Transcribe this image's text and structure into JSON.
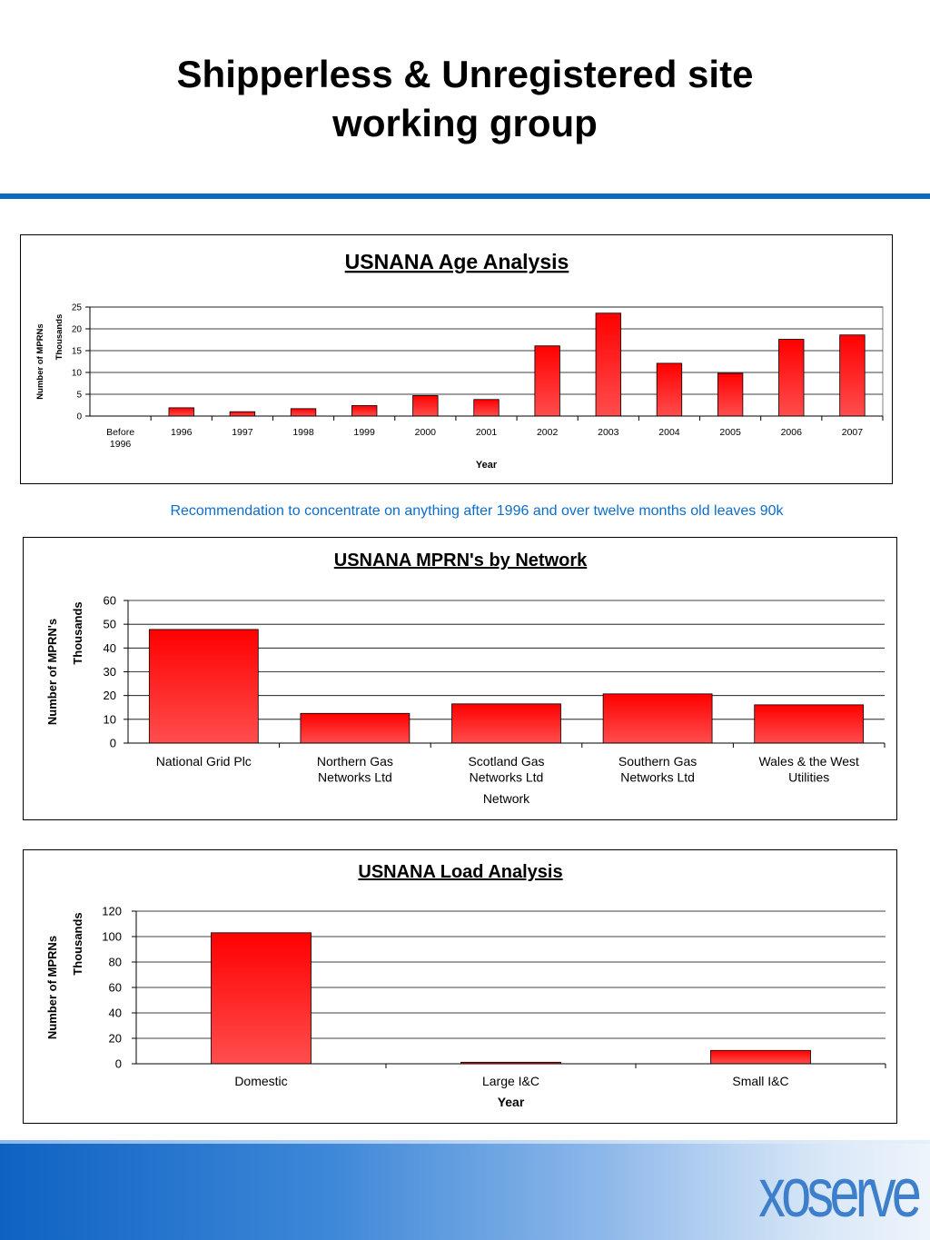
{
  "page": {
    "title_line1": "Shipperless & Unregistered site",
    "title_line2": "working group",
    "recommendation": "Recommendation to concentrate on anything after 1996  and over twelve months old leaves 90k",
    "logo_text": "xoserve"
  },
  "colors": {
    "bar": "#ff1c1c",
    "bar_dark": "#b30000",
    "accent_blue": "#0a6cbf",
    "note_blue": "#0b6dcc"
  },
  "chart_data": [
    {
      "type": "bar",
      "title": "USNANA Age Analysis",
      "categories": [
        [
          "Before",
          "1996"
        ],
        [
          "1996"
        ],
        [
          "1997"
        ],
        [
          "1998"
        ],
        [
          "1999"
        ],
        [
          "2000"
        ],
        [
          "2001"
        ],
        [
          "2002"
        ],
        [
          "2003"
        ],
        [
          "2004"
        ],
        [
          "2005"
        ],
        [
          "2006"
        ],
        [
          "2007"
        ]
      ],
      "values": [
        0,
        1.9,
        1.0,
        1.7,
        2.4,
        4.7,
        3.8,
        16.1,
        23.6,
        12.1,
        9.8,
        17.6,
        18.6
      ],
      "xlabel": "Year",
      "ylabel": "Number of MPRNs",
      "yunit": "Thousands",
      "ylim": [
        0,
        25
      ],
      "yticks": [
        0,
        5,
        10,
        15,
        20,
        25
      ],
      "grid": true
    },
    {
      "type": "bar",
      "title": "USNANA MPRN's by Network",
      "categories": [
        [
          "National Grid Plc"
        ],
        [
          "Northern Gas",
          "Networks Ltd"
        ],
        [
          "Scotland Gas",
          "Networks Ltd"
        ],
        [
          "Southern Gas",
          "Networks Ltd"
        ],
        [
          "Wales & the West",
          "Utilities"
        ]
      ],
      "values": [
        47.8,
        12.5,
        16.5,
        20.7,
        16.1
      ],
      "xlabel": "Network",
      "ylabel": "Number of MPRN's",
      "yunit": "Thousands",
      "ylim": [
        0,
        60
      ],
      "yticks": [
        0,
        10,
        20,
        30,
        40,
        50,
        60
      ],
      "grid": true
    },
    {
      "type": "bar",
      "title": "USNANA Load Analysis",
      "categories": [
        [
          "Domestic"
        ],
        [
          "Large I&C"
        ],
        [
          "Small I&C"
        ]
      ],
      "values": [
        103,
        1.2,
        10.5
      ],
      "xlabel": "Year",
      "ylabel": "Number of MPRNs",
      "yunit": "Thousands",
      "ylim": [
        0,
        120
      ],
      "yticks": [
        0,
        20,
        40,
        60,
        80,
        100,
        120
      ],
      "grid": true
    }
  ]
}
